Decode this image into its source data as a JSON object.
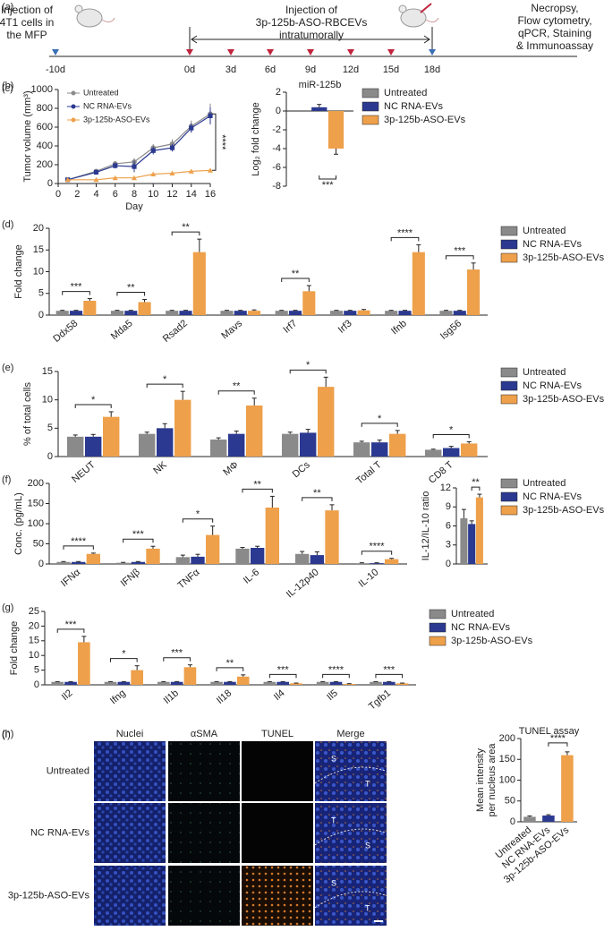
{
  "timeline": {
    "panel": "(a)",
    "left_note": [
      "Injection of",
      "4T1 cells in",
      "the MFP"
    ],
    "middle_note": [
      "Injection of",
      "3p-125b-ASO-RBCEVs",
      "intratumorally"
    ],
    "right_note": [
      "Necropsy,",
      "Flow cytometry,",
      "qPCR, Staining",
      "& Immunoassay"
    ],
    "events": [
      {
        "label": "-10d",
        "color": "#3b6fb6"
      },
      {
        "label": "0d",
        "color": "#c0243c"
      },
      {
        "label": "3d",
        "color": "#c0243c"
      },
      {
        "label": "6d",
        "color": "#c0243c"
      },
      {
        "label": "9d",
        "color": "#c0243c"
      },
      {
        "label": "12d",
        "color": "#c0243c"
      },
      {
        "label": "15d",
        "color": "#c0243c"
      },
      {
        "label": "18d",
        "color": "#3b6fb6"
      }
    ]
  },
  "image_grid": {
    "panel": "(h)",
    "columns": [
      "Nuclei",
      "αSMA",
      "TUNEL",
      "Merge"
    ],
    "rows": [
      "Untreated",
      "NC RNA-EVs",
      "3p-125b-ASO-EVs"
    ],
    "region_labels": [
      [
        "S",
        "T"
      ],
      [
        "T",
        "S"
      ],
      [
        "S",
        "T"
      ]
    ]
  },
  "chart_data": [
    {
      "type": "line",
      "panel": "(b)",
      "ylabel": "Tumor volume (mm³)",
      "xlabel": "Day",
      "x": [
        1,
        4,
        6,
        8,
        10,
        12,
        14,
        16
      ],
      "xlim": [
        0,
        16
      ],
      "xticks": [
        0,
        2,
        4,
        6,
        8,
        10,
        12,
        14,
        16
      ],
      "ylim": [
        0,
        1000
      ],
      "yticks": [
        0,
        200,
        400,
        600,
        800,
        1000
      ],
      "legend": "upper left",
      "significance": "****",
      "series": [
        {
          "name": "Untreated",
          "color": "#8a8a8a",
          "values": [
            40,
            130,
            210,
            230,
            380,
            420,
            610,
            740
          ],
          "errors": [
            5,
            15,
            30,
            40,
            40,
            50,
            60,
            110
          ]
        },
        {
          "name": "NC RNA-EVs",
          "color": "#2b3990",
          "values": [
            40,
            120,
            190,
            180,
            350,
            380,
            590,
            720
          ],
          "errors": [
            5,
            15,
            30,
            60,
            40,
            40,
            50,
            90
          ]
        },
        {
          "name": "3p-125b-ASO-EVs",
          "color": "#eea04a",
          "values": [
            40,
            40,
            60,
            60,
            100,
            110,
            130,
            140
          ],
          "errors": [
            3,
            5,
            8,
            8,
            10,
            10,
            10,
            15
          ]
        }
      ]
    },
    {
      "type": "bar",
      "panel": "(c)",
      "title": "miR-125b",
      "ylabel": "Log₂ fold change",
      "categories": [
        null
      ],
      "ylim": [
        -8,
        2
      ],
      "yticks": [
        -8,
        -6,
        -4,
        -2,
        0,
        2
      ],
      "legend": "right",
      "significance": [
        "***"
      ],
      "series": [
        {
          "name": "Untreated",
          "color": "#8a8a8a",
          "values": [
            0
          ],
          "errors": [
            0
          ]
        },
        {
          "name": "NC RNA-EVs",
          "color": "#2b3990",
          "values": [
            0.4
          ],
          "errors": [
            0.3
          ]
        },
        {
          "name": "3p-125b-ASO-EVs",
          "color": "#eea04a",
          "values": [
            -4
          ],
          "errors": [
            0.6
          ]
        }
      ]
    },
    {
      "type": "bar",
      "panel": "(d)",
      "ylabel": "Fold change",
      "categories": [
        "Ddx58",
        "Mda5",
        "Rsad2",
        "Mavs",
        "Irf7",
        "Irf3",
        "Ifnb",
        "Isg56"
      ],
      "ylim": [
        0,
        20
      ],
      "yticks": [
        0,
        5,
        10,
        15,
        20
      ],
      "legend": "right",
      "significance": [
        "***",
        "**",
        "**",
        null,
        "**",
        null,
        "****",
        "***"
      ],
      "series": [
        {
          "name": "Untreated",
          "color": "#8a8a8a",
          "values": [
            1,
            1,
            1,
            1,
            1,
            1,
            1,
            1
          ],
          "errors": [
            0.1,
            0.1,
            0.1,
            0.1,
            0.1,
            0.1,
            0.1,
            0.1
          ]
        },
        {
          "name": "NC RNA-EVs",
          "color": "#2b3990",
          "values": [
            1,
            1,
            1,
            1,
            1,
            1,
            1,
            1
          ],
          "errors": [
            0.1,
            0.1,
            0.1,
            0.1,
            0.1,
            0.1,
            0.1,
            0.1
          ]
        },
        {
          "name": "3p-125b-ASO-EVs",
          "color": "#eea04a",
          "values": [
            3.3,
            3,
            14.5,
            1,
            5.5,
            1.1,
            14.5,
            10.5
          ],
          "errors": [
            0.5,
            0.6,
            3,
            0.2,
            1.3,
            0.2,
            1.7,
            1.5
          ]
        }
      ]
    },
    {
      "type": "bar",
      "panel": "(e)",
      "ylabel": "% of total cells",
      "categories": [
        "NEUT",
        "NK",
        "MΦ",
        "DCs",
        "Total T",
        "CD8 T"
      ],
      "ylim": [
        0,
        15
      ],
      "yticks": [
        0,
        5,
        10,
        15
      ],
      "legend": "right",
      "significance": [
        "*",
        "*",
        "**",
        "*",
        "*",
        "*"
      ],
      "series": [
        {
          "name": "Untreated",
          "color": "#8a8a8a",
          "values": [
            3.5,
            4,
            3,
            4,
            2.5,
            1.2
          ],
          "errors": [
            0.3,
            0.3,
            0.3,
            0.3,
            0.2,
            0.1
          ]
        },
        {
          "name": "NC RNA-EVs",
          "color": "#2b3990",
          "values": [
            3.5,
            5,
            4,
            4.2,
            2.5,
            1.5
          ],
          "errors": [
            0.4,
            0.8,
            0.5,
            0.6,
            0.4,
            0.3
          ]
        },
        {
          "name": "3p-125b-ASO-EVs",
          "color": "#eea04a",
          "values": [
            7,
            10,
            9,
            12.3,
            4,
            2.3
          ],
          "errors": [
            0.9,
            1.5,
            1.3,
            1.7,
            0.6,
            0.3
          ]
        }
      ]
    },
    {
      "type": "bar",
      "panel": "(f)",
      "ylabel": "Conc. (pg/mL)",
      "categories": [
        "IFNα",
        "IFNβ",
        "TNFα",
        "IL-6",
        "IL-12p40",
        "IL-10"
      ],
      "ylim": [
        0,
        200
      ],
      "yticks": [
        0,
        50,
        100,
        150,
        200
      ],
      "legend": "right",
      "significance": [
        "****",
        "***",
        "*",
        "**",
        "**",
        "****"
      ],
      "series": [
        {
          "name": "Untreated",
          "color": "#8a8a8a",
          "values": [
            5,
            3,
            17,
            38,
            25,
            2
          ],
          "errors": [
            1,
            1,
            5,
            3,
            6,
            1
          ]
        },
        {
          "name": "NC RNA-EVs",
          "color": "#2b3990",
          "values": [
            5,
            5,
            18,
            40,
            22,
            2
          ],
          "errors": [
            1,
            1,
            6,
            4,
            8,
            1
          ]
        },
        {
          "name": "3p-125b-ASO-EVs",
          "color": "#eea04a",
          "values": [
            25,
            38,
            72,
            140,
            133,
            12
          ],
          "errors": [
            2,
            6,
            22,
            28,
            14,
            2
          ]
        }
      ]
    },
    {
      "type": "bar",
      "ylabel": "IL-12/IL-10 ratio",
      "categories": [
        null
      ],
      "ylim": [
        0,
        12
      ],
      "yticks": [
        0,
        3,
        6,
        9,
        12
      ],
      "significance": [
        "**"
      ],
      "series": [
        {
          "name": "Untreated",
          "color": "#8a8a8a",
          "values": [
            7.2
          ],
          "errors": [
            1.4
          ]
        },
        {
          "name": "NC RNA-EVs",
          "color": "#2b3990",
          "values": [
            6.3
          ],
          "errors": [
            0.5
          ]
        },
        {
          "name": "3p-125b-ASO-EVs",
          "color": "#eea04a",
          "values": [
            10.5
          ],
          "errors": [
            0.5
          ]
        }
      ]
    },
    {
      "type": "bar",
      "panel": "(g)",
      "ylabel": "Fold change",
      "categories": [
        "Il2",
        "Ifng",
        "Il1b",
        "Il18",
        "Il4",
        "Il5",
        "Tgfb1"
      ],
      "ylim": [
        0,
        25
      ],
      "yticks": [
        0,
        5,
        10,
        15,
        20,
        25
      ],
      "legend": "right",
      "significance": [
        "***",
        "*",
        "***",
        "**",
        "***",
        "****",
        "***"
      ],
      "series": [
        {
          "name": "Untreated",
          "color": "#8a8a8a",
          "values": [
            1,
            1,
            1,
            1,
            1,
            1,
            1
          ],
          "errors": [
            0.1,
            0.1,
            0.1,
            0.1,
            0.1,
            0.1,
            0.1
          ]
        },
        {
          "name": "NC RNA-EVs",
          "color": "#2b3990",
          "values": [
            1,
            1,
            1,
            1,
            1,
            1,
            1
          ],
          "errors": [
            0.1,
            0.1,
            0.1,
            0.1,
            0.1,
            0.1,
            0.1
          ]
        },
        {
          "name": "3p-125b-ASO-EVs",
          "color": "#eea04a",
          "values": [
            14.5,
            5,
            6,
            2.8,
            0.5,
            0.3,
            0.5
          ],
          "errors": [
            2,
            1.5,
            0.8,
            0.6,
            0.1,
            0.1,
            0.1
          ]
        }
      ]
    },
    {
      "type": "bar",
      "panel": "(i)",
      "title": "TUNEL assay",
      "ylabel": [
        "Mean intensity",
        "per nucleus area"
      ],
      "categories": [
        "Untreated",
        "NC RNA-EVs",
        "3p-125b-ASO-EVs"
      ],
      "ylim": [
        0,
        200
      ],
      "yticks": [
        0,
        50,
        100,
        150,
        200
      ],
      "significance": [
        "****"
      ],
      "series": [
        {
          "colors": [
            "#8a8a8a",
            "#2b3990",
            "#eea04a"
          ],
          "values": [
            12,
            15,
            160
          ],
          "errors": [
            2,
            2,
            8
          ]
        }
      ]
    }
  ]
}
